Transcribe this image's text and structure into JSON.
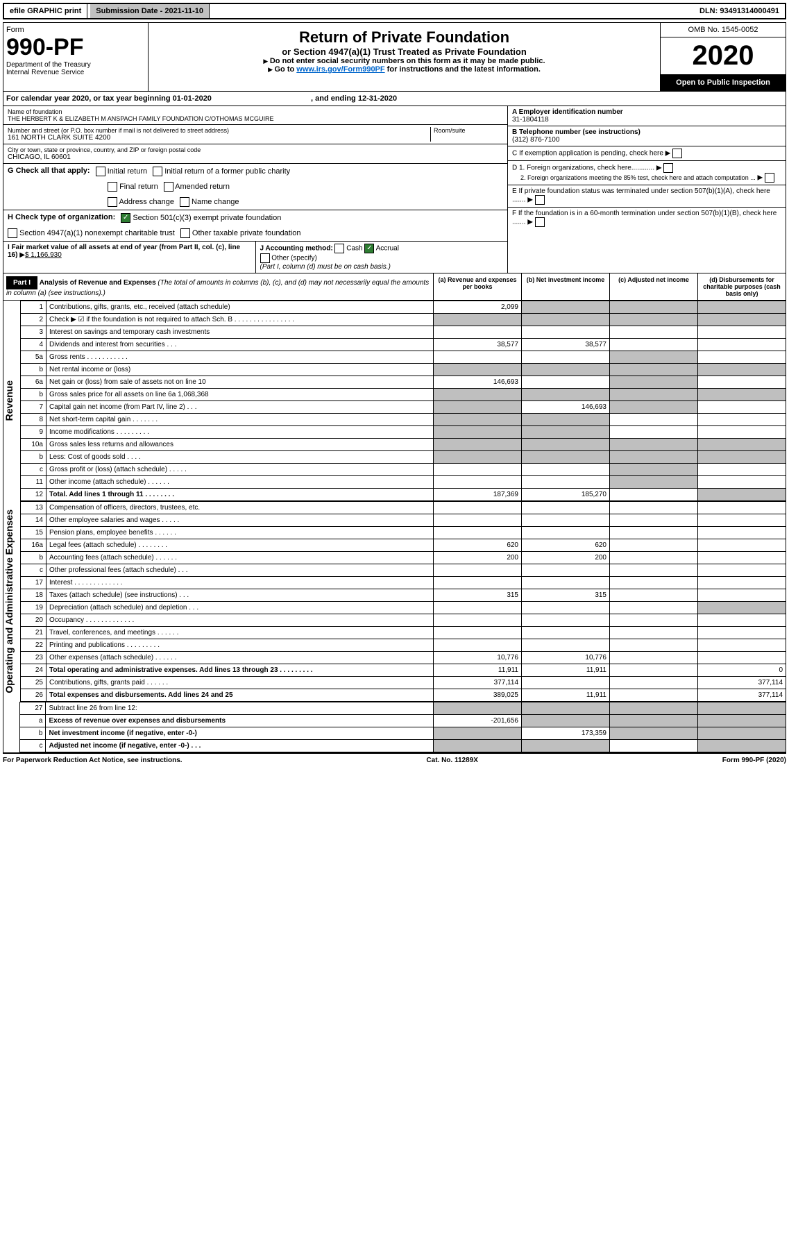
{
  "topbar": {
    "efile": "efile GRAPHIC print",
    "subdate_lbl": "Submission Date - ",
    "subdate": "2021-11-10",
    "dln_lbl": "DLN: ",
    "dln": "93491314000491"
  },
  "header": {
    "form": "Form",
    "formno": "990-PF",
    "dept": "Department of the Treasury",
    "irs": "Internal Revenue Service",
    "title": "Return of Private Foundation",
    "sub": "or Section 4947(a)(1) Trust Treated as Private Foundation",
    "i1": "Do not enter social security numbers on this form as it may be made public.",
    "i2_a": "Go to ",
    "i2_link": "www.irs.gov/Form990PF",
    "i2_b": " for instructions and the latest information.",
    "omb": "OMB No. 1545-0052",
    "year": "2020",
    "open": "Open to Public Inspection"
  },
  "cal": {
    "a": "For calendar year 2020, or tax year beginning ",
    "b": "01-01-2020",
    "c": ", and ending ",
    "d": "12-31-2020"
  },
  "info": {
    "name_lbl": "Name of foundation",
    "name": "THE HERBERT K & ELIZABETH M ANSPACH FAMILY FOUNDATION C/OTHOMAS MCGUIRE",
    "addr_lbl": "Number and street (or P.O. box number if mail is not delivered to street address)",
    "addr": "161 NORTH CLARK SUITE 4200",
    "room_lbl": "Room/suite",
    "city_lbl": "City or town, state or province, country, and ZIP or foreign postal code",
    "city": "CHICAGO, IL  60601",
    "ein_lbl": "A Employer identification number",
    "ein": "31-1804118",
    "tel_lbl": "B Telephone number (see instructions)",
    "tel": "(312) 876-7100",
    "c": "C If exemption application is pending, check here",
    "d1": "D 1. Foreign organizations, check here............",
    "d2": "2. Foreign organizations meeting the 85% test, check here and attach computation ...",
    "e": "E  If private foundation status was terminated under section 507(b)(1)(A), check here .......",
    "f": "F  If the foundation is in a 60-month termination under section 507(b)(1)(B), check here ......."
  },
  "g": {
    "lbl": "G Check all that apply:",
    "o1": "Initial return",
    "o2": "Initial return of a former public charity",
    "o3": "Final return",
    "o4": "Amended return",
    "o5": "Address change",
    "o6": "Name change"
  },
  "h": {
    "lbl": "H Check type of organization:",
    "o1": "Section 501(c)(3) exempt private foundation",
    "o2": "Section 4947(a)(1) nonexempt charitable trust",
    "o3": "Other taxable private foundation"
  },
  "i": {
    "lbl": "I Fair market value of all assets at end of year (from Part II, col. (c), line 16) ",
    "amt": "$  1,166,930"
  },
  "j": {
    "lbl": "J Accounting method:",
    "o1": "Cash",
    "o2": "Accrual",
    "o3": "Other (specify)",
    "note": "(Part I, column (d) must be on cash basis.)"
  },
  "part1": {
    "hdr": "Part I",
    "title": "Analysis of Revenue and Expenses",
    "note": "(The total of amounts in columns (b), (c), and (d) may not necessarily equal the amounts in column (a) (see instructions).)",
    "ca": "(a) Revenue and expenses per books",
    "cb": "(b) Net investment income",
    "cc": "(c) Adjusted net income",
    "cd": "(d) Disbursements for charitable purposes (cash basis only)"
  },
  "rev_lbl": "Revenue",
  "exp_lbl": "Operating and Administrative Expenses",
  "rows": [
    {
      "n": "1",
      "l": "Contributions, gifts, grants, etc., received (attach schedule)",
      "a": "2,099"
    },
    {
      "n": "2",
      "l": "Check ▶ ☑ if the foundation is not required to attach Sch. B   .  .  .  .  .  .  .  .  .  .  .  .  .  .  .  ."
    },
    {
      "n": "3",
      "l": "Interest on savings and temporary cash investments"
    },
    {
      "n": "4",
      "l": "Dividends and interest from securities    .   .   .",
      "a": "38,577",
      "b": "38,577"
    },
    {
      "n": "5a",
      "l": "Gross rents     .   .   .   .   .   .   .   .   .   .   ."
    },
    {
      "n": "b",
      "l": "Net rental income or (loss)"
    },
    {
      "n": "6a",
      "l": "Net gain or (loss) from sale of assets not on line 10",
      "a": "146,693"
    },
    {
      "n": "b",
      "l": "Gross sales price for all assets on line 6a           1,068,368"
    },
    {
      "n": "7",
      "l": "Capital gain net income (from Part IV, line 2)   .   .   .",
      "b": "146,693"
    },
    {
      "n": "8",
      "l": "Net short-term capital gain   .   .   .   .   .   .   ."
    },
    {
      "n": "9",
      "l": "Income modifications  .   .   .   .   .   .   .   .   ."
    },
    {
      "n": "10a",
      "l": "Gross sales less returns and allowances"
    },
    {
      "n": "b",
      "l": "Less: Cost of goods sold     .   .   .   ."
    },
    {
      "n": "c",
      "l": "Gross profit or (loss) (attach schedule)     .   .   .   .   ."
    },
    {
      "n": "11",
      "l": "Other income (attach schedule)    .   .   .   .   .   ."
    },
    {
      "n": "12",
      "l": "Total. Add lines 1 through 11   .   .   .   .   .   .   .   .",
      "a": "187,369",
      "b": "185,270",
      "bold": true
    }
  ],
  "exp": [
    {
      "n": "13",
      "l": "Compensation of officers, directors, trustees, etc."
    },
    {
      "n": "14",
      "l": "Other employee salaries and wages   .   .   .   .   ."
    },
    {
      "n": "15",
      "l": "Pension plans, employee benefits  .   .   .   .   .   ."
    },
    {
      "n": "16a",
      "l": "Legal fees (attach schedule) .   .   .   .   .   .   .   .",
      "a": "620",
      "b": "620"
    },
    {
      "n": "b",
      "l": "Accounting fees (attach schedule)  .   .   .   .   .   .",
      "a": "200",
      "b": "200"
    },
    {
      "n": "c",
      "l": "Other professional fees (attach schedule)    .   .   ."
    },
    {
      "n": "17",
      "l": "Interest  .   .   .   .   .   .   .   .   .   .   .   .   ."
    },
    {
      "n": "18",
      "l": "Taxes (attach schedule) (see instructions)     .   .   .",
      "a": "315",
      "b": "315"
    },
    {
      "n": "19",
      "l": "Depreciation (attach schedule) and depletion   .   .   ."
    },
    {
      "n": "20",
      "l": "Occupancy .   .   .   .   .   .   .   .   .   .   .   .   ."
    },
    {
      "n": "21",
      "l": "Travel, conferences, and meetings  .   .   .   .   .   ."
    },
    {
      "n": "22",
      "l": "Printing and publications  .   .   .   .   .   .   .   .   ."
    },
    {
      "n": "23",
      "l": "Other expenses (attach schedule)  .   .   .   .   .   .",
      "a": "10,776",
      "b": "10,776"
    },
    {
      "n": "24",
      "l": "Total operating and administrative expenses. Add lines 13 through 23   .   .   .   .   .   .   .   .   .",
      "a": "11,911",
      "b": "11,911",
      "d": "0",
      "bold": true
    },
    {
      "n": "25",
      "l": "Contributions, gifts, grants paid     .   .   .   .   .   .",
      "a": "377,114",
      "d": "377,114"
    },
    {
      "n": "26",
      "l": "Total expenses and disbursements. Add lines 24 and 25",
      "a": "389,025",
      "b": "11,911",
      "d": "377,114",
      "bold": true
    }
  ],
  "net": [
    {
      "n": "27",
      "l": "Subtract line 26 from line 12:"
    },
    {
      "n": "a",
      "l": "Excess of revenue over expenses and disbursements",
      "a": "-201,656",
      "bold": true
    },
    {
      "n": "b",
      "l": "Net investment income (if negative, enter -0-)",
      "b": "173,359",
      "bold": true
    },
    {
      "n": "c",
      "l": "Adjusted net income (if negative, enter -0-)   .   .   .",
      "bold": true
    }
  ],
  "foot": {
    "a": "For Paperwork Reduction Act Notice, see instructions.",
    "b": "Cat. No. 11289X",
    "c": "Form 990-PF (2020)"
  }
}
